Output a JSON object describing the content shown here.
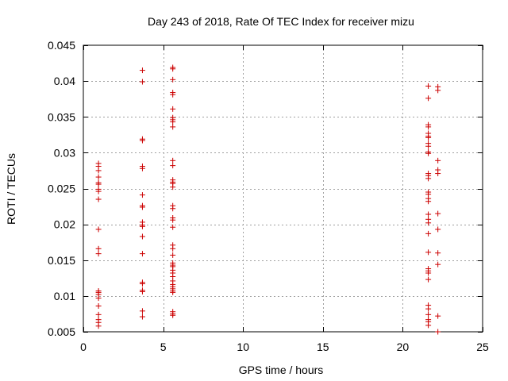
{
  "chart_data": {
    "type": "scatter",
    "title": "Day 243 of 2018, Rate Of TEC Index for receiver mizu",
    "xlabel": "GPS time / hours",
    "ylabel": "ROTI / TECUs",
    "xlim": [
      0,
      25
    ],
    "ylim": [
      0.005,
      0.045
    ],
    "xticks": [
      0,
      5,
      10,
      15,
      20,
      25
    ],
    "yticks": [
      0.005,
      0.01,
      0.015,
      0.02,
      0.025,
      0.03,
      0.035,
      0.04,
      0.045
    ],
    "xtick_labels": [
      "0",
      "5",
      "10",
      "15",
      "20",
      "25"
    ],
    "ytick_labels": [
      "0.005",
      "0.01",
      "0.015",
      "0.02",
      "0.025",
      "0.03",
      "0.035",
      "0.04",
      "0.045"
    ],
    "grid": true,
    "marker": "+",
    "color": "#cc0000",
    "series": [
      {
        "name": "ROTI",
        "points": [
          [
            0.95,
            0.0285
          ],
          [
            0.95,
            0.0281
          ],
          [
            0.95,
            0.0275
          ],
          [
            0.95,
            0.0266
          ],
          [
            0.95,
            0.0258
          ],
          [
            0.95,
            0.0256
          ],
          [
            0.95,
            0.0249
          ],
          [
            0.95,
            0.0246
          ],
          [
            0.95,
            0.0235
          ],
          [
            0.95,
            0.0193
          ],
          [
            0.95,
            0.0166
          ],
          [
            0.95,
            0.0159
          ],
          [
            0.95,
            0.0107
          ],
          [
            0.95,
            0.0105
          ],
          [
            0.95,
            0.0102
          ],
          [
            0.95,
            0.0097
          ],
          [
            0.95,
            0.0086
          ],
          [
            0.95,
            0.0074
          ],
          [
            0.95,
            0.0067
          ],
          [
            0.95,
            0.0063
          ],
          [
            0.95,
            0.0058
          ],
          [
            3.7,
            0.0415
          ],
          [
            3.7,
            0.0399
          ],
          [
            3.7,
            0.0319
          ],
          [
            3.7,
            0.0317
          ],
          [
            3.7,
            0.0281
          ],
          [
            3.7,
            0.0278
          ],
          [
            3.7,
            0.0241
          ],
          [
            3.7,
            0.0226
          ],
          [
            3.7,
            0.0224
          ],
          [
            3.7,
            0.0203
          ],
          [
            3.7,
            0.0199
          ],
          [
            3.7,
            0.0197
          ],
          [
            3.7,
            0.0183
          ],
          [
            3.7,
            0.0159
          ],
          [
            3.7,
            0.0119
          ],
          [
            3.7,
            0.0117
          ],
          [
            3.7,
            0.0108
          ],
          [
            3.7,
            0.0106
          ],
          [
            3.7,
            0.0079
          ],
          [
            3.7,
            0.0071
          ],
          [
            5.6,
            0.0419
          ],
          [
            5.6,
            0.0417
          ],
          [
            5.6,
            0.0402
          ],
          [
            5.6,
            0.0384
          ],
          [
            5.6,
            0.0381
          ],
          [
            5.6,
            0.0361
          ],
          [
            5.6,
            0.0349
          ],
          [
            5.6,
            0.0346
          ],
          [
            5.6,
            0.0343
          ],
          [
            5.6,
            0.0336
          ],
          [
            5.6,
            0.0289
          ],
          [
            5.6,
            0.0282
          ],
          [
            5.6,
            0.0262
          ],
          [
            5.6,
            0.0259
          ],
          [
            5.6,
            0.0257
          ],
          [
            5.6,
            0.0252
          ],
          [
            5.6,
            0.0226
          ],
          [
            5.6,
            0.0222
          ],
          [
            5.6,
            0.0209
          ],
          [
            5.6,
            0.0206
          ],
          [
            5.6,
            0.0196
          ],
          [
            5.6,
            0.0171
          ],
          [
            5.6,
            0.0166
          ],
          [
            5.6,
            0.0157
          ],
          [
            5.6,
            0.0146
          ],
          [
            5.6,
            0.0143
          ],
          [
            5.6,
            0.0141
          ],
          [
            5.6,
            0.0136
          ],
          [
            5.6,
            0.0132
          ],
          [
            5.6,
            0.0127
          ],
          [
            5.6,
            0.0121
          ],
          [
            5.6,
            0.0116
          ],
          [
            5.6,
            0.0113
          ],
          [
            5.6,
            0.011
          ],
          [
            5.6,
            0.0107
          ],
          [
            5.6,
            0.0105
          ],
          [
            5.6,
            0.0078
          ],
          [
            5.6,
            0.0075
          ],
          [
            5.6,
            0.0073
          ],
          [
            21.6,
            0.0393
          ],
          [
            21.6,
            0.0376
          ],
          [
            21.6,
            0.0339
          ],
          [
            21.6,
            0.0336
          ],
          [
            21.6,
            0.0327
          ],
          [
            21.6,
            0.0323
          ],
          [
            21.6,
            0.0321
          ],
          [
            21.6,
            0.0313
          ],
          [
            21.6,
            0.0309
          ],
          [
            21.6,
            0.0301
          ],
          [
            21.6,
            0.0299
          ],
          [
            21.6,
            0.0271
          ],
          [
            21.6,
            0.0268
          ],
          [
            21.6,
            0.0264
          ],
          [
            21.6,
            0.0245
          ],
          [
            21.6,
            0.0242
          ],
          [
            21.6,
            0.0236
          ],
          [
            21.6,
            0.0232
          ],
          [
            21.6,
            0.0214
          ],
          [
            21.6,
            0.0207
          ],
          [
            21.6,
            0.0202
          ],
          [
            21.6,
            0.0187
          ],
          [
            21.6,
            0.0161
          ],
          [
            21.6,
            0.0138
          ],
          [
            21.6,
            0.0135
          ],
          [
            21.6,
            0.0132
          ],
          [
            21.6,
            0.0123
          ],
          [
            21.6,
            0.0087
          ],
          [
            21.6,
            0.0082
          ],
          [
            21.6,
            0.0074
          ],
          [
            21.6,
            0.0067
          ],
          [
            21.6,
            0.0064
          ],
          [
            21.6,
            0.0059
          ],
          [
            22.2,
            0.0392
          ],
          [
            22.2,
            0.0387
          ],
          [
            22.2,
            0.0289
          ],
          [
            22.2,
            0.0276
          ],
          [
            22.2,
            0.0271
          ],
          [
            22.2,
            0.0215
          ],
          [
            22.2,
            0.0193
          ],
          [
            22.2,
            0.016
          ],
          [
            22.2,
            0.0144
          ],
          [
            22.2,
            0.0072
          ],
          [
            22.2,
            0.005
          ]
        ]
      }
    ]
  }
}
